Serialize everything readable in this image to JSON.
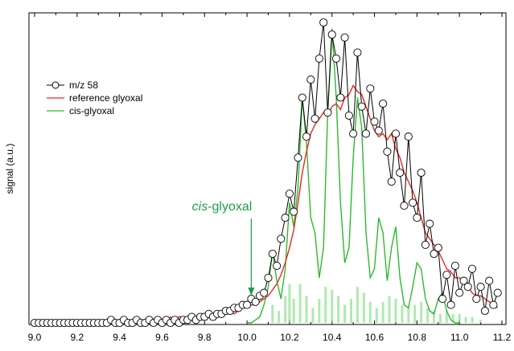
{
  "chart_data": {
    "type": "line",
    "title": "",
    "xlabel": "",
    "ylabel": "signal (a.u.)",
    "xlim": [
      9.0,
      11.2
    ],
    "ylim": [
      0,
      100
    ],
    "x_ticks": [
      "9.0",
      "9.2",
      "9.4",
      "9.6",
      "9.8",
      "10.0",
      "10.2",
      "10.4",
      "10.6",
      "10.8",
      "11.0",
      "11.2"
    ],
    "grid": false,
    "legend_position": "upper-left",
    "colors": {
      "m58": "#000000",
      "reference": "#e8281e",
      "cis": "#2bbb2b",
      "stick": "#8fe08f",
      "annotation": "#1f9e4a"
    },
    "series": [
      {
        "name": "m/z 58",
        "style": "line-with-open-circles",
        "x": [
          9.0,
          9.02,
          9.04,
          9.06,
          9.08,
          9.1,
          9.12,
          9.14,
          9.16,
          9.18,
          9.2,
          9.22,
          9.24,
          9.26,
          9.28,
          9.3,
          9.32,
          9.34,
          9.36,
          9.38,
          9.4,
          9.42,
          9.44,
          9.46,
          9.48,
          9.5,
          9.52,
          9.54,
          9.56,
          9.58,
          9.6,
          9.62,
          9.64,
          9.66,
          9.68,
          9.7,
          9.72,
          9.74,
          9.76,
          9.78,
          9.8,
          9.82,
          9.84,
          9.86,
          9.88,
          9.9,
          9.92,
          9.94,
          9.96,
          9.98,
          10.0,
          10.02,
          10.04,
          10.06,
          10.08,
          10.1,
          10.12,
          10.14,
          10.16,
          10.18,
          10.2,
          10.22,
          10.24,
          10.26,
          10.28,
          10.3,
          10.32,
          10.34,
          10.36,
          10.38,
          10.4,
          10.42,
          10.44,
          10.46,
          10.48,
          10.5,
          10.52,
          10.54,
          10.56,
          10.58,
          10.6,
          10.62,
          10.64,
          10.66,
          10.68,
          10.7,
          10.72,
          10.74,
          10.76,
          10.78,
          10.8,
          10.82,
          10.84,
          10.86,
          10.88,
          10.9,
          10.92,
          10.94,
          10.96,
          10.98,
          11.0,
          11.02,
          11.04,
          11.06,
          11.08,
          11.1,
          11.12,
          11.14,
          11.16,
          11.18
        ],
        "y": [
          0,
          0,
          0,
          0,
          0,
          0,
          0,
          0,
          0,
          0,
          0,
          0,
          0,
          0,
          0,
          0,
          0,
          0,
          1,
          0,
          0,
          1,
          0,
          0,
          1,
          0,
          0,
          1,
          0,
          1,
          0,
          1,
          0,
          1,
          0,
          1,
          1,
          2,
          1,
          2,
          2,
          3,
          2,
          3,
          3,
          4,
          4,
          5,
          5,
          6,
          6,
          8,
          7,
          9,
          10,
          15,
          23,
          19,
          28,
          35,
          43,
          37,
          55,
          75,
          62,
          81,
          68,
          88,
          100,
          70,
          96,
          88,
          75,
          95,
          69,
          63,
          90,
          72,
          63,
          78,
          67,
          64,
          73,
          57,
          47,
          63,
          50,
          39,
          62,
          40,
          35,
          50,
          26,
          33,
          23,
          25,
          8,
          16,
          6,
          19,
          10,
          14,
          12,
          18,
          8,
          12,
          4,
          14,
          6,
          10
        ]
      },
      {
        "name": "reference glyoxal",
        "style": "line",
        "x": [
          9.6,
          9.62,
          9.64,
          9.66,
          9.68,
          9.7,
          9.72,
          9.74,
          9.76,
          9.78,
          9.8,
          9.82,
          9.84,
          9.86,
          9.88,
          9.9,
          9.92,
          9.94,
          9.96,
          9.98,
          10.0,
          10.02,
          10.04,
          10.06,
          10.08,
          10.1,
          10.12,
          10.14,
          10.16,
          10.18,
          10.2,
          10.22,
          10.24,
          10.26,
          10.28,
          10.3,
          10.32,
          10.34,
          10.36,
          10.38,
          10.4,
          10.42,
          10.44,
          10.46,
          10.48,
          10.5,
          10.52,
          10.54,
          10.56,
          10.58,
          10.6,
          10.62,
          10.64,
          10.66,
          10.68,
          10.7,
          10.72,
          10.74,
          10.76,
          10.78,
          10.8,
          10.82,
          10.84,
          10.86,
          10.88,
          10.9,
          10.92,
          10.94,
          10.96,
          10.98,
          11.0,
          11.02,
          11.04,
          11.06,
          11.08,
          11.1,
          11.12,
          11.14,
          11.16,
          11.18
        ],
        "y": [
          1,
          1,
          2,
          1,
          2,
          2,
          1,
          2,
          2,
          3,
          2,
          3,
          3,
          2,
          4,
          3,
          4,
          3,
          4,
          5,
          5,
          6,
          6,
          7,
          8,
          9,
          11,
          13,
          16,
          20,
          25,
          31,
          40,
          50,
          57,
          63,
          66,
          68,
          70,
          69,
          72,
          73,
          71,
          75,
          76,
          79,
          77,
          76,
          72,
          68,
          64,
          62,
          63,
          61,
          63,
          58,
          55,
          50,
          47,
          44,
          40,
          35,
          30,
          28,
          26,
          24,
          21,
          18,
          17,
          15,
          15,
          13,
          12,
          10,
          9,
          9,
          8,
          7,
          6,
          5
        ]
      },
      {
        "name": "cis-glyoxal",
        "style": "line",
        "x": [
          10.0,
          10.02,
          10.04,
          10.06,
          10.08,
          10.1,
          10.12,
          10.14,
          10.16,
          10.18,
          10.2,
          10.22,
          10.24,
          10.26,
          10.28,
          10.3,
          10.32,
          10.34,
          10.36,
          10.38,
          10.4,
          10.42,
          10.44,
          10.46,
          10.48,
          10.5,
          10.52,
          10.54,
          10.56,
          10.58,
          10.6,
          10.62,
          10.64,
          10.66,
          10.68,
          10.7,
          10.72,
          10.74,
          10.76,
          10.78,
          10.8,
          10.82,
          10.84,
          10.86,
          10.88,
          10.9,
          10.92,
          10.94,
          10.96,
          10.98,
          11.0
        ],
        "y": [
          0,
          0,
          1,
          2,
          6,
          12,
          24,
          14,
          8,
          18,
          40,
          32,
          45,
          75,
          60,
          35,
          30,
          15,
          25,
          70,
          98,
          75,
          40,
          20,
          25,
          55,
          75,
          65,
          30,
          15,
          18,
          35,
          30,
          14,
          25,
          32,
          15,
          6,
          5,
          12,
          20,
          18,
          8,
          4,
          3,
          8,
          10,
          4,
          1,
          0,
          0
        ]
      }
    ],
    "stick_spectrum": {
      "x": [
        10.12,
        10.15,
        10.18,
        10.2,
        10.22,
        10.25,
        10.28,
        10.31,
        10.34,
        10.37,
        10.4,
        10.43,
        10.46,
        10.49,
        10.52,
        10.55,
        10.58,
        10.61,
        10.64,
        10.67,
        10.7,
        10.73,
        10.76,
        10.79,
        10.82,
        10.85,
        10.88,
        10.91,
        10.94,
        10.97,
        11.0,
        11.03,
        11.06,
        11.1
      ],
      "y": [
        6,
        4,
        9,
        13,
        8,
        13,
        9,
        5,
        8,
        12,
        11,
        9,
        6,
        8,
        12,
        10,
        7,
        5,
        7,
        9,
        8,
        6,
        5,
        6,
        7,
        5,
        4,
        3,
        4,
        3,
        3,
        2,
        2,
        1
      ]
    },
    "annotation": {
      "text_italic": "cis",
      "text_rest": "-glyoxal",
      "arrow_x": 10.02
    }
  }
}
